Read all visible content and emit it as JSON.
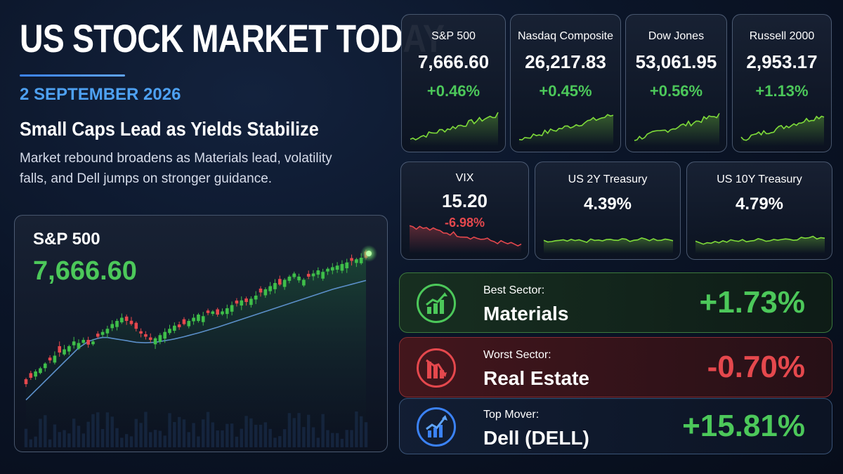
{
  "header": {
    "title": "US STOCK MARKET TODAY",
    "date": "2 SEPTEMBER 2026",
    "headline": "Small Caps Lead as Yields Stabilize",
    "subhead": "Market rebound broadens as Materials lead, volatility falls, and Dell jumps on stronger guidance."
  },
  "colors": {
    "up": "#4cc85a",
    "down": "#e5484d",
    "accent": "#4ea1f2",
    "spark_up": "#7fdc3a"
  },
  "indices": [
    {
      "name": "S&P 500",
      "value": "7,666.60",
      "change": "+0.46%",
      "direction": "up"
    },
    {
      "name": "Nasdaq Composite",
      "value": "26,217.83",
      "change": "+0.45%",
      "direction": "up"
    },
    {
      "name": "Dow Jones",
      "value": "53,061.95",
      "change": "+0.56%",
      "direction": "up"
    },
    {
      "name": "Russell 2000",
      "value": "2,953.17",
      "change": "+1.13%",
      "direction": "up"
    }
  ],
  "rates": [
    {
      "name": "VIX",
      "value": "15.20",
      "change": "-6.98%",
      "direction": "down"
    },
    {
      "name": "US 2Y Treasury",
      "value": "4.39%",
      "change": "",
      "direction": "flat"
    },
    {
      "name": "US 10Y Treasury",
      "value": "4.79%",
      "change": "",
      "direction": "flat"
    }
  ],
  "sectors": {
    "best": {
      "label": "Best Sector:",
      "name": "Materials",
      "value": "+1.73%",
      "icon": "bar-chart-up-icon"
    },
    "worst": {
      "label": "Worst Sector:",
      "name": "Real Estate",
      "value": "-0.70%",
      "icon": "bar-chart-down-icon"
    },
    "mover": {
      "label": "Top Mover:",
      "name": "Dell (DELL)",
      "value": "+15.81%",
      "icon": "trend-arrow-up-icon"
    }
  },
  "main_chart": {
    "label": "S&P 500",
    "value": "7,666.60"
  },
  "chart_data": {
    "type": "line",
    "title": "S&P 500",
    "x": [
      0,
      1,
      2,
      3,
      4,
      5,
      6,
      7,
      8,
      9,
      10,
      11,
      12,
      13,
      14,
      15,
      16,
      17,
      18,
      19,
      20,
      21,
      22,
      23,
      24,
      25,
      26,
      27,
      28,
      29,
      30,
      31,
      32,
      33,
      34,
      35,
      36,
      37,
      38,
      39,
      40,
      41,
      42,
      43,
      44,
      45,
      46,
      47,
      48,
      49,
      50,
      51,
      52,
      53,
      54,
      55,
      56,
      57,
      58,
      59,
      60,
      61,
      62,
      63,
      64,
      65,
      66,
      67,
      68,
      69,
      70,
      71
    ],
    "series": [
      {
        "values": [
          20,
          24,
          28,
          30,
          33,
          35,
          38,
          40,
          42,
          44,
          47,
          46,
          48,
          45,
          47,
          50,
          53,
          55,
          58,
          60,
          62,
          60,
          58,
          55,
          52,
          50,
          48,
          49,
          51,
          53,
          55,
          57,
          56,
          58,
          60,
          62,
          64,
          63,
          65,
          66,
          64,
          66,
          68,
          70,
          71,
          73,
          72,
          74,
          76,
          78,
          80,
          82,
          84,
          83,
          86,
          88,
          90,
          88,
          86,
          88,
          90,
          92,
          91,
          93,
          94,
          95,
          96,
          97,
          98,
          99,
          100,
          100
        ]
      },
      {
        "values": [
          10,
          13,
          16,
          19,
          22,
          25,
          28,
          31,
          34,
          37,
          40,
          43,
          45,
          47,
          48,
          49,
          49.5,
          49.5,
          49,
          48.5,
          48,
          47.5,
          47,
          46.5,
          46.3,
          46.2,
          46.3,
          46.5,
          47,
          47.5,
          48,
          48.6,
          49.3,
          50,
          50.8,
          51.6,
          52.4,
          53.3,
          54.2,
          55.1,
          56,
          57,
          58,
          59,
          60,
          61,
          62,
          63,
          64,
          65,
          66,
          67,
          68,
          69,
          70,
          71,
          72,
          73,
          74,
          75,
          76,
          77,
          78,
          79,
          80,
          80.8,
          81.6,
          82.4,
          83.2,
          84,
          84.8,
          85.6
        ]
      }
    ]
  }
}
